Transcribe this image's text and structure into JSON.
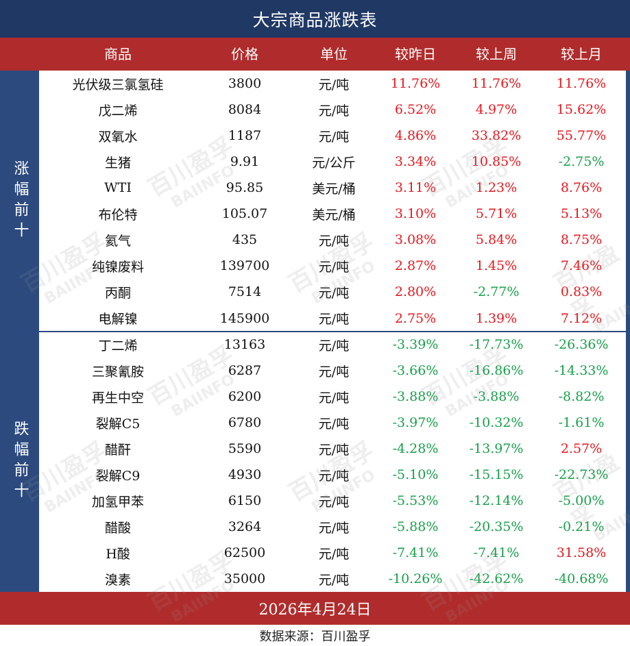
{
  "title": "大宗商品涨跌表",
  "headers": [
    "商品",
    "价格",
    "单位",
    "较昨日",
    "较上周",
    "较上月"
  ],
  "groups": {
    "rise_label": "涨幅前十",
    "fall_label": "跌幅前十"
  },
  "rows": [
    {
      "name": "光伏级三氯氢硅",
      "price": "3800",
      "unit": "元/吨",
      "day": "11.76%",
      "week": "11.76%",
      "month": "11.76%"
    },
    {
      "name": "戊二烯",
      "price": "8084",
      "unit": "元/吨",
      "day": "6.52%",
      "week": "4.97%",
      "month": "15.62%"
    },
    {
      "name": "双氧水",
      "price": "1187",
      "unit": "元/吨",
      "day": "4.86%",
      "week": "33.82%",
      "month": "55.77%"
    },
    {
      "name": "生猪",
      "price": "9.91",
      "unit": "元/公斤",
      "day": "3.34%",
      "week": "10.85%",
      "month": "-2.75%"
    },
    {
      "name": "WTI",
      "price": "95.85",
      "unit": "美元/桶",
      "day": "3.11%",
      "week": "1.23%",
      "month": "8.76%"
    },
    {
      "name": "布伦特",
      "price": "105.07",
      "unit": "美元/桶",
      "day": "3.10%",
      "week": "5.71%",
      "month": "5.13%"
    },
    {
      "name": "氦气",
      "price": "435",
      "unit": "元/吨",
      "day": "3.08%",
      "week": "5.84%",
      "month": "8.75%"
    },
    {
      "name": "纯镍废料",
      "price": "139700",
      "unit": "元/吨",
      "day": "2.87%",
      "week": "1.45%",
      "month": "7.46%"
    },
    {
      "name": "丙酮",
      "price": "7514",
      "unit": "元/吨",
      "day": "2.80%",
      "week": "-2.77%",
      "month": "0.83%"
    },
    {
      "name": "电解镍",
      "price": "145900",
      "unit": "元/吨",
      "day": "2.75%",
      "week": "1.39%",
      "month": "7.12%"
    },
    {
      "name": "丁二烯",
      "price": "13163",
      "unit": "元/吨",
      "day": "-3.39%",
      "week": "-17.73%",
      "month": "-26.36%"
    },
    {
      "name": "三聚氰胺",
      "price": "6287",
      "unit": "元/吨",
      "day": "-3.66%",
      "week": "-16.86%",
      "month": "-14.33%"
    },
    {
      "name": "再生中空",
      "price": "6200",
      "unit": "元/吨",
      "day": "-3.88%",
      "week": "-3.88%",
      "month": "-8.82%"
    },
    {
      "name": "裂解C5",
      "price": "6780",
      "unit": "元/吨",
      "day": "-3.97%",
      "week": "-10.32%",
      "month": "-1.61%"
    },
    {
      "name": "醋酐",
      "price": "5590",
      "unit": "元/吨",
      "day": "-4.28%",
      "week": "-13.97%",
      "month": "2.57%"
    },
    {
      "name": "裂解C9",
      "price": "4930",
      "unit": "元/吨",
      "day": "-5.10%",
      "week": "-15.15%",
      "month": "-22.73%"
    },
    {
      "name": "加氢甲苯",
      "price": "6150",
      "unit": "元/吨",
      "day": "-5.53%",
      "week": "-12.14%",
      "month": "-5.00%"
    },
    {
      "name": "醋酸",
      "price": "3264",
      "unit": "元/吨",
      "day": "-5.88%",
      "week": "-20.35%",
      "month": "-0.21%"
    },
    {
      "name": "H酸",
      "price": "62500",
      "unit": "元/吨",
      "day": "-7.41%",
      "week": "-7.41%",
      "month": "31.58%"
    },
    {
      "name": "溴素",
      "price": "35000",
      "unit": "元/吨",
      "day": "-10.26%",
      "week": "-42.62%",
      "month": "-40.68%"
    }
  ],
  "date": "2026年4月24日",
  "source": "数据来源：百川盈孚",
  "watermark": {
    "cn": "百川盈孚",
    "en": "BAIINFO"
  },
  "colors": {
    "title_bg": "#203864",
    "header_bg": "#b02c2c",
    "side_bg": "#2c4a7e",
    "up": "#e8161c",
    "down": "#17a04a"
  }
}
